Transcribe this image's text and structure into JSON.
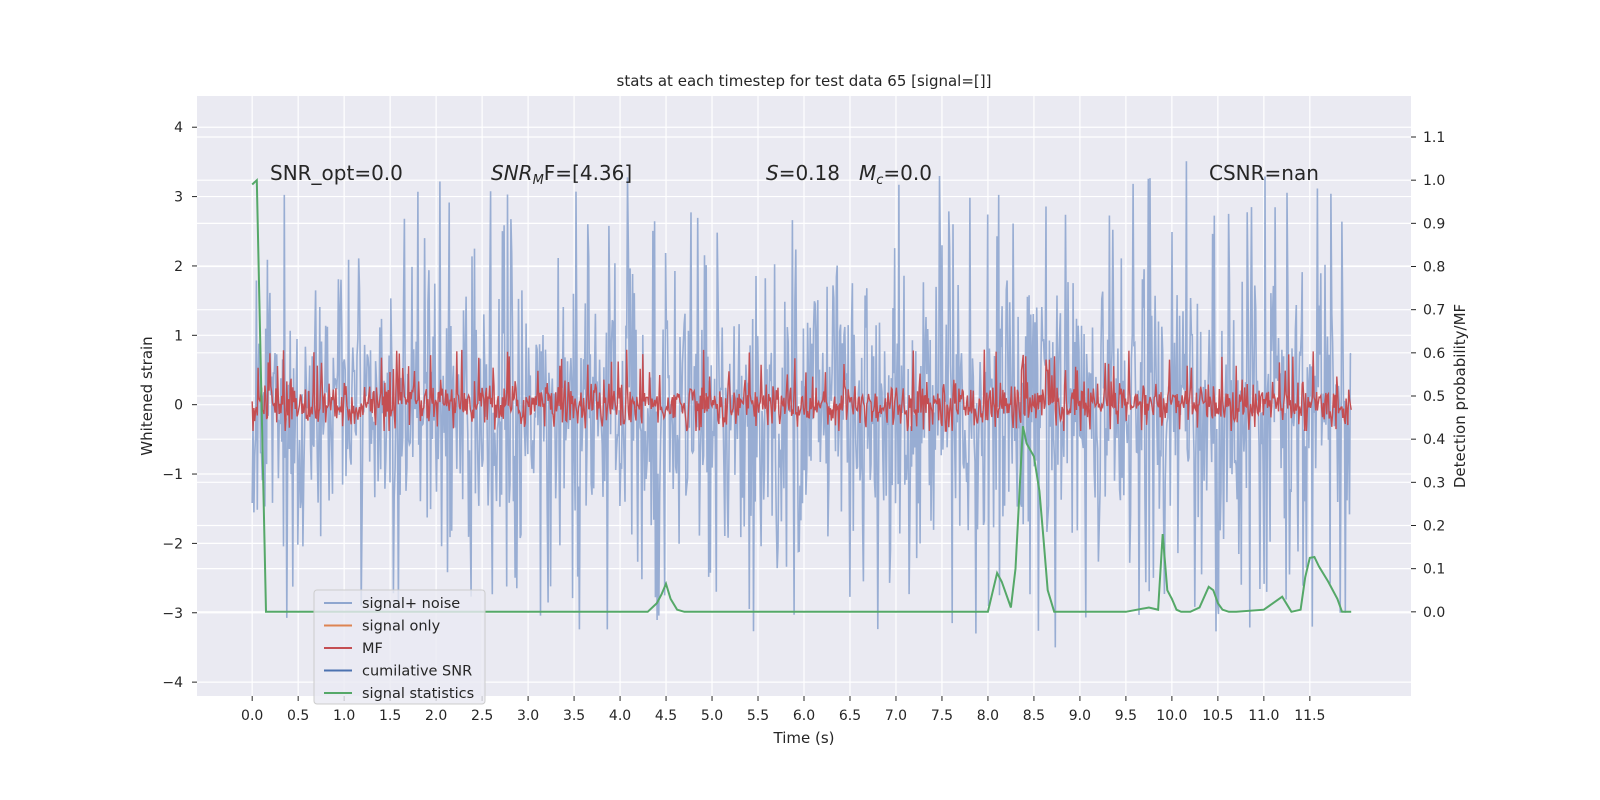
{
  "chart_data": {
    "type": "line",
    "title": "stats at each timestep for test data 65 [signal=[]]",
    "xlabel": "Time (s)",
    "ylabel": "Whitened strain",
    "y2label": "Detection probability/MF",
    "xlim": [
      -0.6,
      12.6
    ],
    "ylim": [
      -4.2,
      4.45
    ],
    "y2lim": [
      -0.195,
      1.195
    ],
    "x_ticks": [
      "0.0",
      "0.5",
      "1.0",
      "1.5",
      "2.0",
      "2.5",
      "3.0",
      "3.5",
      "4.0",
      "4.5",
      "5.0",
      "5.5",
      "6.0",
      "6.5",
      "7.0",
      "7.5",
      "8.0",
      "8.5",
      "9.0",
      "9.5",
      "10.0",
      "10.5",
      "11.0",
      "11.5"
    ],
    "y_ticks": [
      "4",
      "3",
      "2",
      "1",
      "0",
      "−1",
      "−2",
      "−3",
      "−4"
    ],
    "y2_ticks": [
      "1.1",
      "1.0",
      "0.9",
      "0.8",
      "0.7",
      "0.6",
      "0.5",
      "0.4",
      "0.3",
      "0.2",
      "0.1",
      "0.0"
    ],
    "grid": true,
    "legend_position": "lower-left",
    "annotations": {
      "snr_opt": "SNR_opt=0.0",
      "snr_mf_name": "SNR",
      "snr_mf_sub": "M",
      "snr_mf_rest": "F=[4.36]",
      "s_name": "S",
      "s_rest": "=0.18",
      "mc_name": "M",
      "mc_sub": "c",
      "mc_rest": "=0.0",
      "csnr": "CSNR=nan"
    },
    "series": [
      {
        "name": "signal+ noise",
        "color": "#8fa6cf",
        "description_band": [
          -2.9,
          3.1
        ]
      },
      {
        "name": "signal only",
        "color": "#dd8452"
      },
      {
        "name": "MF",
        "color": "#c44e52",
        "description_band": [
          -0.38,
          0.8
        ]
      },
      {
        "name": "cumilative SNR",
        "color": "#4c72b0"
      },
      {
        "name": "signal statistics",
        "color": "#55a868",
        "axis": "right",
        "x": [
          0.0,
          0.05,
          0.1,
          0.15,
          0.5,
          1.0,
          2.0,
          3.0,
          4.0,
          4.3,
          4.4,
          4.45,
          4.5,
          4.55,
          4.62,
          4.7,
          5.0,
          6.0,
          7.0,
          8.0,
          8.1,
          8.15,
          8.25,
          8.3,
          8.38,
          8.42,
          8.5,
          8.56,
          8.6,
          8.65,
          8.72,
          9.0,
          9.5,
          9.75,
          9.85,
          9.9,
          9.95,
          10.0,
          10.05,
          10.1,
          10.2,
          10.3,
          10.4,
          10.45,
          10.5,
          10.55,
          10.62,
          10.7,
          11.0,
          11.1,
          11.2,
          11.3,
          11.4,
          11.45,
          11.5,
          11.55,
          11.6,
          11.7,
          11.8,
          11.85,
          11.95
        ],
        "values": [
          0.99,
          1.0,
          0.5,
          0.0,
          0.0,
          0.0,
          0.0,
          0.0,
          0.0,
          0.0,
          0.02,
          0.04,
          0.065,
          0.03,
          0.005,
          0.0,
          0.0,
          0.0,
          0.0,
          0.0,
          0.09,
          0.07,
          0.01,
          0.1,
          0.43,
          0.39,
          0.36,
          0.28,
          0.18,
          0.05,
          0.0,
          0.0,
          0.0,
          0.01,
          0.005,
          0.18,
          0.05,
          0.03,
          0.005,
          0.0,
          0.0,
          0.01,
          0.058,
          0.05,
          0.02,
          0.005,
          0.0,
          0.0,
          0.005,
          0.02,
          0.035,
          0.0,
          0.005,
          0.08,
          0.125,
          0.127,
          0.105,
          0.07,
          0.03,
          0.0,
          0.0
        ]
      }
    ]
  }
}
